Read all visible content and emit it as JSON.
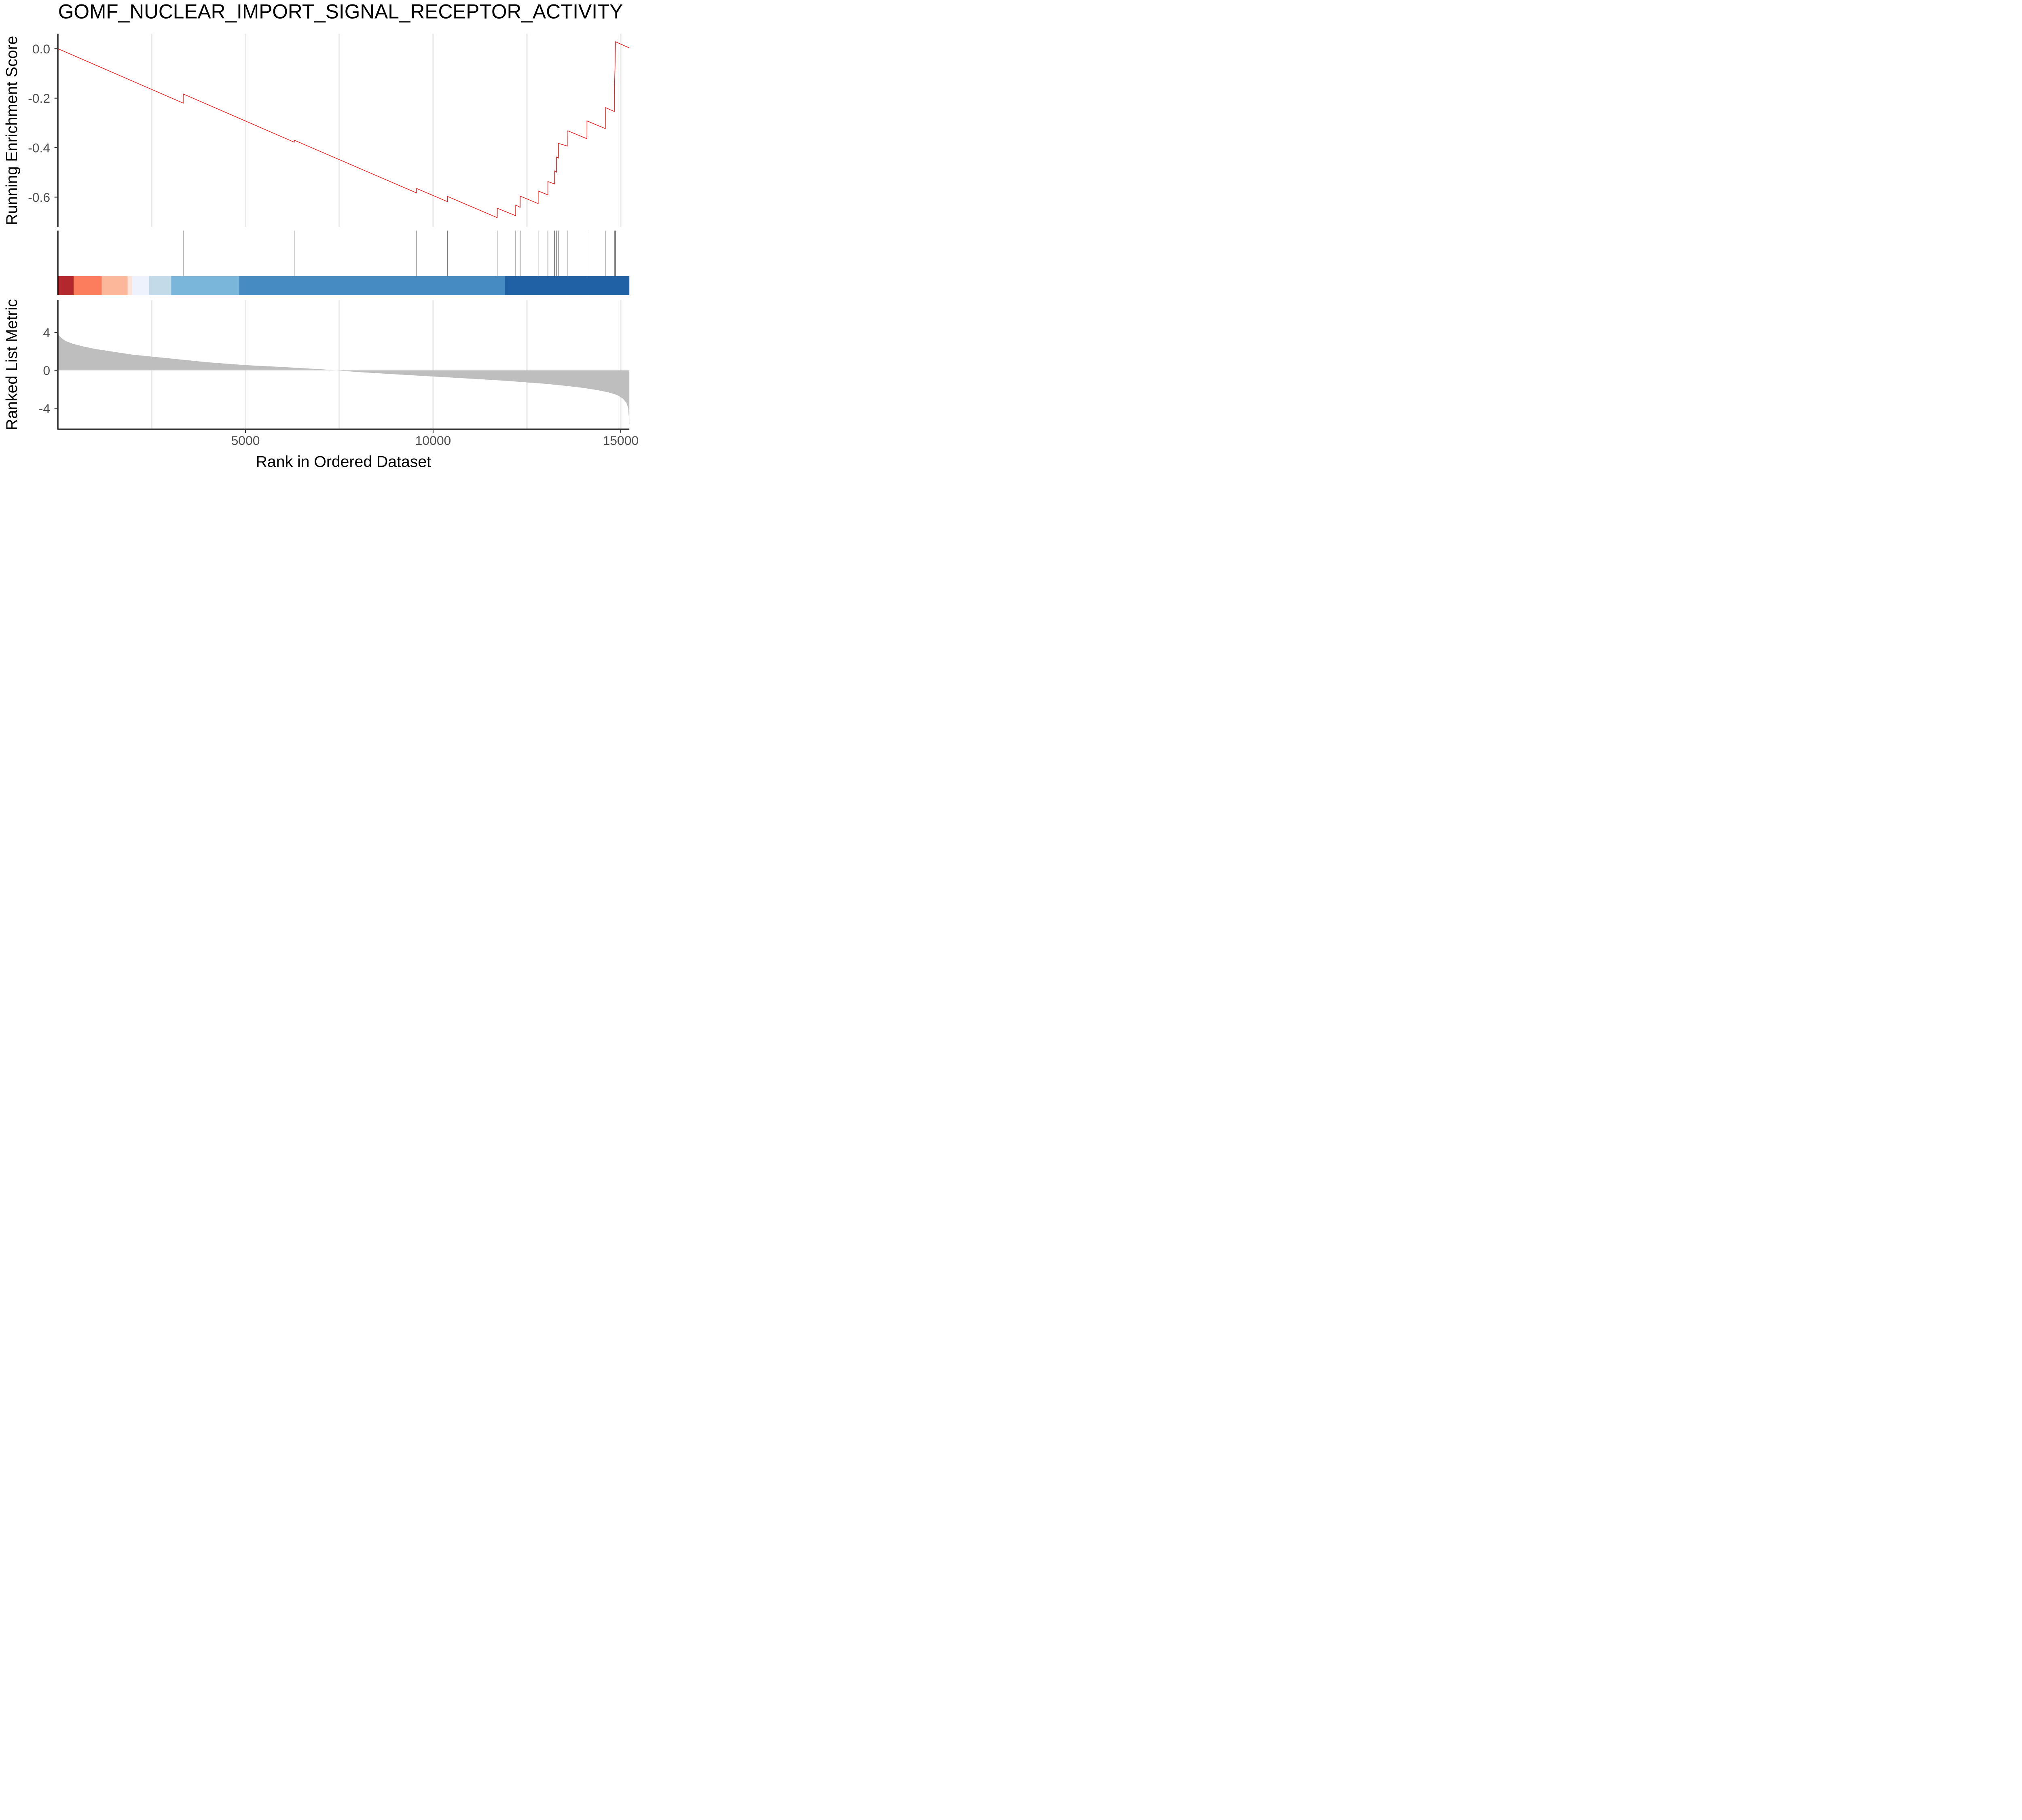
{
  "chart_data": {
    "type": "line",
    "title": "GOMF_NUCLEAR_IMPORT_SIGNAL_RECEPTOR_ACTIVITY",
    "xlabel": "Rank in Ordered Dataset",
    "xlim": [
      1,
      15230
    ],
    "x_ticks": [
      5000,
      10000,
      15000
    ],
    "x_tick_labels": [
      "5000",
      "10000",
      "15000"
    ],
    "grid": "vertical major and minor lines",
    "panels": {
      "running_score": {
        "ylabel": "Running Enrichment Score",
        "ylim": [
          -0.72,
          0.06
        ],
        "y_ticks": [
          0.0,
          -0.2,
          -0.4,
          -0.6
        ],
        "y_tick_labels": [
          "0.0",
          "-0.2",
          "-0.4",
          "-0.6"
        ],
        "line_color": "#e41a1c",
        "series": [
          {
            "x": [
              1,
              3340,
              3341,
              6300,
              6301,
              9560,
              9561,
              10380,
              10381,
              11710,
              11711,
              12200,
              12201,
              12320,
              12321,
              12800,
              12801,
              13060,
              13061,
              13240,
              13241,
              13290,
              13291,
              13340,
              13341,
              13590,
              13591,
              14100,
              14101,
              14590,
              14591,
              14830,
              14831,
              14850,
              14851,
              14860,
              14861,
              15230
            ],
            "y": [
              0.0,
              -0.22,
              -0.183,
              -0.378,
              -0.37,
              -0.583,
              -0.565,
              -0.618,
              -0.597,
              -0.683,
              -0.645,
              -0.675,
              -0.632,
              -0.641,
              -0.596,
              -0.626,
              -0.575,
              -0.591,
              -0.537,
              -0.547,
              -0.494,
              -0.499,
              -0.438,
              -0.442,
              -0.383,
              -0.394,
              -0.332,
              -0.364,
              -0.292,
              -0.323,
              -0.238,
              -0.254,
              -0.161,
              -0.066,
              -0.06,
              0.028,
              0.028,
              0.003
            ]
          }
        ]
      },
      "hits": {
        "positions": [
          3340,
          6300,
          9560,
          10380,
          11710,
          12200,
          12320,
          12800,
          13060,
          13240,
          13290,
          13340,
          13590,
          14100,
          14590,
          14830,
          14850,
          14860
        ]
      },
      "color_bar": {
        "segments": [
          {
            "from": 1,
            "to": 420,
            "color": "#b2282d"
          },
          {
            "from": 420,
            "to": 1170,
            "color": "#fc7d5e"
          },
          {
            "from": 1170,
            "to": 1860,
            "color": "#fcb69a"
          },
          {
            "from": 1860,
            "to": 1980,
            "color": "#fde3d6"
          },
          {
            "from": 1980,
            "to": 2430,
            "color": "#eef2fc"
          },
          {
            "from": 2430,
            "to": 3020,
            "color": "#c3dbe8"
          },
          {
            "from": 3020,
            "to": 4830,
            "color": "#7ab6d9"
          },
          {
            "from": 4830,
            "to": 11910,
            "color": "#468cc2"
          },
          {
            "from": 11910,
            "to": 15230,
            "color": "#2060a5"
          }
        ]
      },
      "ranked_metric": {
        "ylabel": "Ranked List Metric",
        "ylim": [
          -6.2,
          7.4
        ],
        "y_ticks": [
          4,
          0,
          -4
        ],
        "y_tick_labels": [
          "4",
          "0",
          "-4"
        ],
        "fill_color": "#bebebe",
        "x": [
          1,
          20,
          100,
          200,
          400,
          700,
          1000,
          1500,
          2000,
          3000,
          4000,
          5000,
          6000,
          7000,
          7420,
          8000,
          9000,
          10000,
          11000,
          12000,
          13000,
          13500,
          14000,
          14400,
          14700,
          14900,
          15050,
          15150,
          15200,
          15230
        ],
        "values": [
          4.2,
          3.7,
          3.4,
          3.1,
          2.8,
          2.5,
          2.25,
          1.95,
          1.65,
          1.25,
          0.85,
          0.55,
          0.35,
          0.12,
          0.0,
          -0.18,
          -0.42,
          -0.65,
          -0.88,
          -1.12,
          -1.42,
          -1.62,
          -1.85,
          -2.1,
          -2.35,
          -2.6,
          -2.95,
          -3.4,
          -4.0,
          -5.8
        ]
      }
    }
  }
}
